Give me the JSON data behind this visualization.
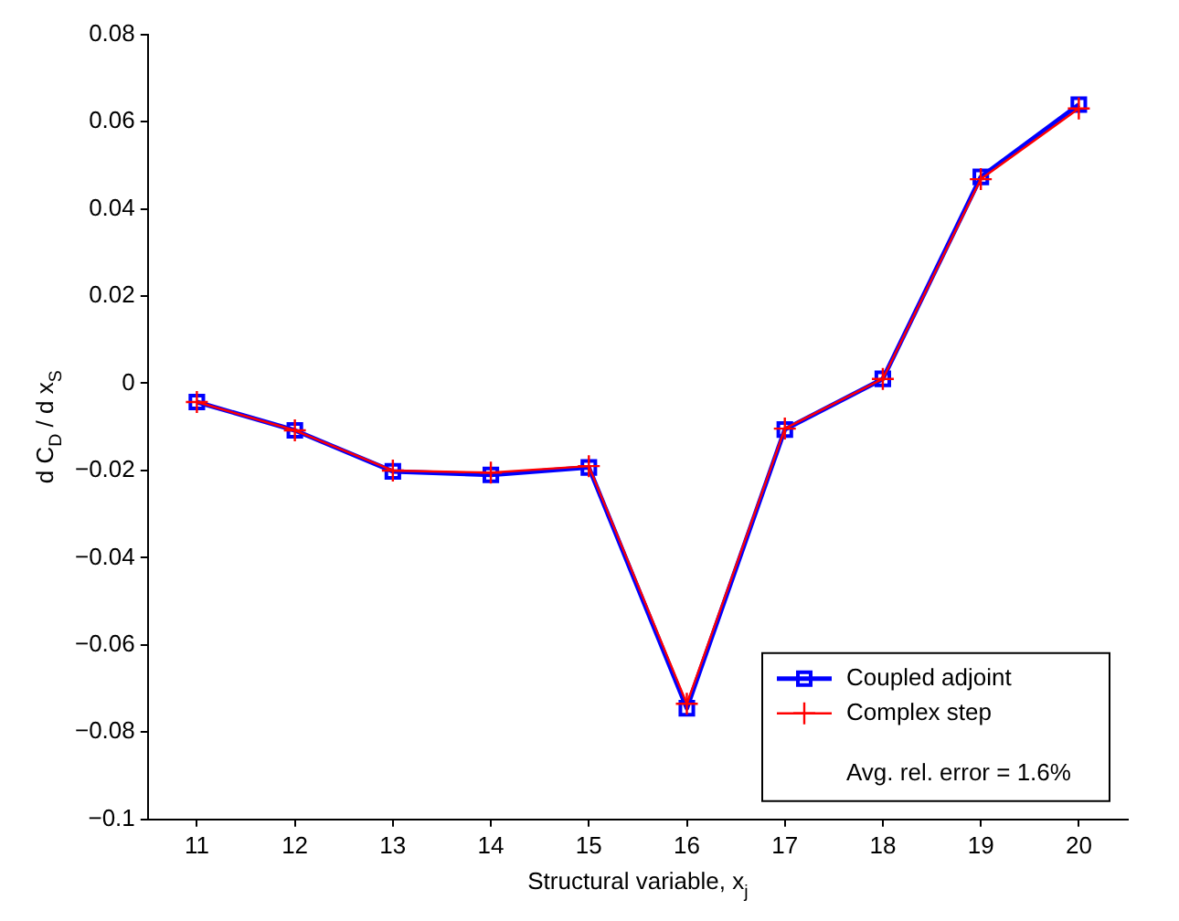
{
  "chart_data": {
    "type": "line",
    "xlabel": "Structural variable, x$_{j}$",
    "ylabel": "d C$_{D}$ / d x$_{S}$",
    "x": [
      11,
      12,
      13,
      14,
      15,
      16,
      17,
      18,
      19,
      20
    ],
    "series": [
      {
        "name": "Coupled adjoint",
        "color": "#0000ff",
        "marker": "square",
        "values": [
          -0.0043,
          -0.0108,
          -0.0202,
          -0.021,
          -0.0193,
          -0.0745,
          -0.0106,
          0.001,
          0.0473,
          0.0639
        ]
      },
      {
        "name": "Complex step",
        "color": "#ff0000",
        "marker": "cross",
        "values": [
          -0.0043,
          -0.0108,
          -0.02,
          -0.0205,
          -0.019,
          -0.0735,
          -0.0104,
          0.001,
          0.0468,
          0.063
        ]
      }
    ],
    "xlim": [
      10.5,
      20.5
    ],
    "xticks": [
      11,
      12,
      13,
      14,
      15,
      16,
      17,
      18,
      19,
      20
    ],
    "ylim": [
      -0.1,
      0.08
    ],
    "yticks": [
      {
        "value": -0.1,
        "label": "−0.1"
      },
      {
        "value": -0.08,
        "label": "−0.08"
      },
      {
        "value": -0.06,
        "label": "−0.06"
      },
      {
        "value": -0.04,
        "label": "−0.04"
      },
      {
        "value": -0.02,
        "label": "−0.02"
      },
      0,
      {
        "value": 0.02,
        "label": "0.02"
      },
      {
        "value": 0.04,
        "label": "0.04"
      },
      {
        "value": 0.06,
        "label": "0.06"
      },
      {
        "value": 0.08,
        "label": "0.08"
      }
    ],
    "grid": false,
    "legend": "bottom right",
    "line_style": "solid",
    "annotations": [
      "Avg. rel. error = 1.6%"
    ]
  }
}
